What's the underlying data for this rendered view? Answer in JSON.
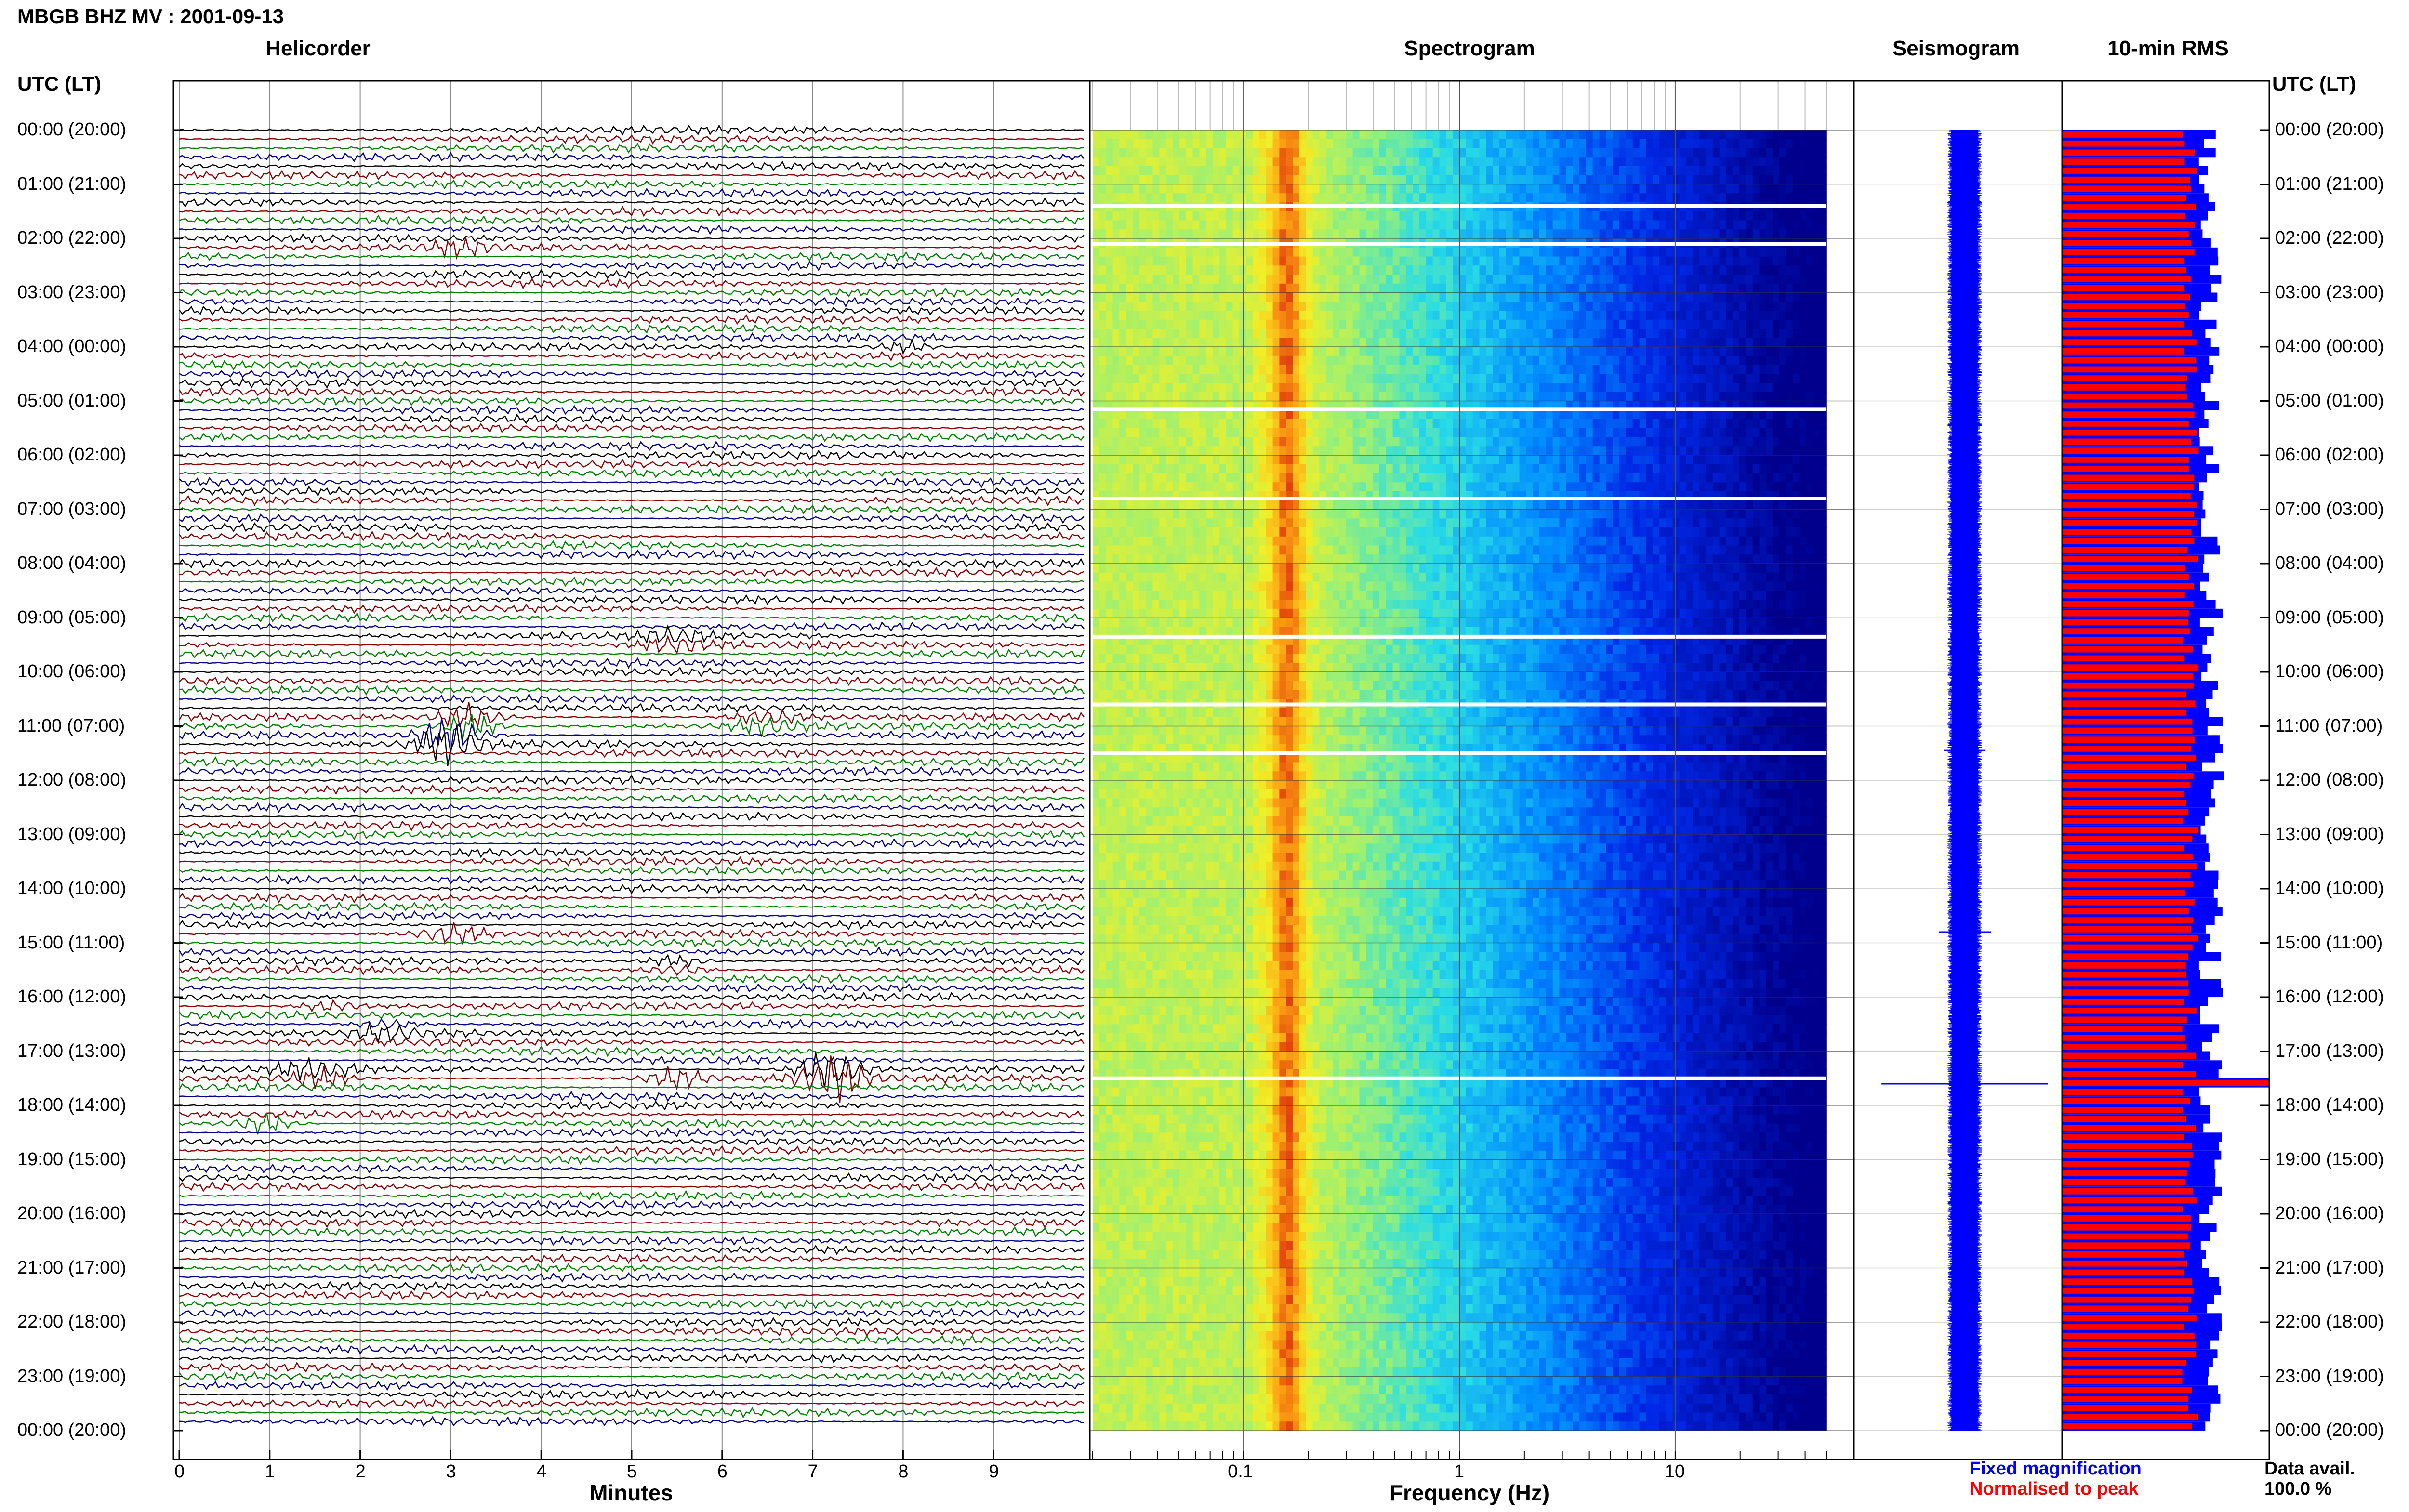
{
  "header": {
    "title": "MBGB BHZ MV : 2001-09-13",
    "utc_label": "UTC (LT)",
    "utc_label_right": "UTC (LT)"
  },
  "panels": {
    "helicorder": "Helicorder",
    "spectrogram": "Spectrogram",
    "seismogram": "Seismogram",
    "rms": "10-min RMS"
  },
  "time_labels": [
    "00:00 (20:00)",
    "01:00 (21:00)",
    "02:00 (22:00)",
    "03:00 (23:00)",
    "04:00 (00:00)",
    "05:00 (01:00)",
    "06:00 (02:00)",
    "07:00 (03:00)",
    "08:00 (04:00)",
    "09:00 (05:00)",
    "10:00 (06:00)",
    "11:00 (07:00)",
    "12:00 (08:00)",
    "13:00 (09:00)",
    "14:00 (10:00)",
    "15:00 (11:00)",
    "16:00 (12:00)",
    "17:00 (13:00)",
    "18:00 (14:00)",
    "19:00 (15:00)",
    "20:00 (16:00)",
    "21:00 (17:00)",
    "22:00 (18:00)",
    "23:00 (19:00)",
    "00:00 (20:00)"
  ],
  "footer": {
    "minutes_label": "Minutes",
    "frequency_label": "Frequency (Hz)",
    "fixed_magnification": "Fixed magnification",
    "normalised_to_peak": "Normalised to peak",
    "data_avail_label": "Data avail.",
    "data_avail_value": "100.0 %"
  },
  "colors": {
    "fixed": "#0000ff",
    "normalised": "#ff0000",
    "trace_colors": [
      "#000000",
      "#8b0000",
      "#008000",
      "#00008b"
    ]
  },
  "chart_data": [
    {
      "type": "line",
      "name": "helicorder",
      "xlabel": "Minutes",
      "x_ticks": [
        "0",
        "1",
        "2",
        "3",
        "4",
        "5",
        "6",
        "7",
        "8",
        "9"
      ],
      "xlim": [
        0,
        10
      ],
      "rows_per_hour": 6,
      "hours": 24,
      "events": [
        {
          "hour": 2.15,
          "minute": 3.1,
          "strength": 0.5
        },
        {
          "hour": 4.0,
          "minute": 8.0,
          "strength": 0.5
        },
        {
          "hour": 9.4,
          "minute": 5.5,
          "strength": 0.6
        },
        {
          "hour": 10.9,
          "minute": 3.2,
          "strength": 1.0
        },
        {
          "hour": 11.25,
          "minute": 3.0,
          "strength": 1.5
        },
        {
          "hour": 10.9,
          "minute": 6.5,
          "strength": 0.7
        },
        {
          "hour": 14.8,
          "minute": 3.0,
          "strength": 0.8
        },
        {
          "hour": 15.4,
          "minute": 5.5,
          "strength": 0.5
        },
        {
          "hour": 16.2,
          "minute": 1.7,
          "strength": 0.5
        },
        {
          "hour": 16.6,
          "minute": 2.3,
          "strength": 0.5
        },
        {
          "hour": 17.4,
          "minute": 1.5,
          "strength": 0.8
        },
        {
          "hour": 17.5,
          "minute": 5.5,
          "strength": 0.8
        },
        {
          "hour": 17.4,
          "minute": 7.2,
          "strength": 1.8
        },
        {
          "hour": 18.3,
          "minute": 0.9,
          "strength": 0.8
        }
      ]
    },
    {
      "type": "heatmap",
      "name": "spectrogram",
      "xlabel": "Frequency (Hz)",
      "x_scale": "log",
      "x_ticks": [
        "0.1",
        "1",
        "10"
      ],
      "xlim": [
        0.02,
        50
      ],
      "y_hours": [
        0,
        24
      ],
      "peak_frequency_hz": 0.16,
      "data_gaps_hours": [
        1.4,
        2.1,
        5.15,
        6.8,
        9.35,
        10.6,
        11.5,
        17.5
      ]
    },
    {
      "type": "line",
      "name": "seismogram",
      "y_hours": [
        0,
        24
      ],
      "spikes": [
        {
          "hour": 11.45,
          "amplitude": 0.2
        },
        {
          "hour": 14.8,
          "amplitude": 0.25
        },
        {
          "hour": 16.1,
          "amplitude": 0.15
        },
        {
          "hour": 17.6,
          "amplitude": 0.8
        }
      ]
    },
    {
      "type": "bar",
      "name": "10-min RMS",
      "orientation": "horizontal",
      "interval_minutes": 10,
      "y_hours": [
        0,
        24
      ],
      "series": [
        {
          "name": "Fixed magnification",
          "level": 0.72
        },
        {
          "name": "Normalised to peak",
          "level": 0.62
        }
      ],
      "peak_hour": 17.5
    }
  ]
}
